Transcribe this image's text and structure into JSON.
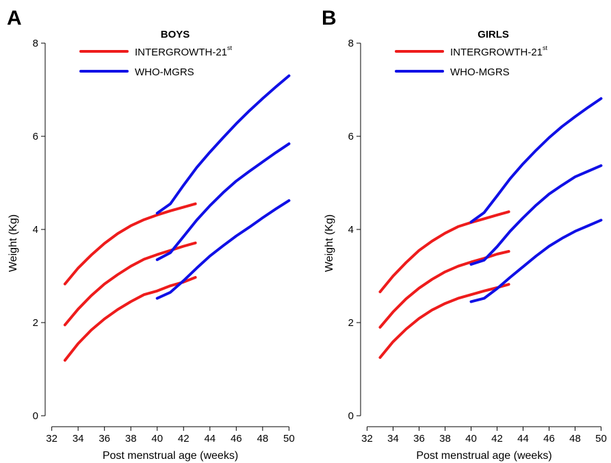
{
  "chart_data": [
    {
      "panel_letter": "A",
      "title": "BOYS",
      "type": "line",
      "xlabel": "Post menstrual age (weeks)",
      "ylabel": "Weight (Kg)",
      "xlim": [
        31.5,
        50.5
      ],
      "ylim": [
        0,
        8
      ],
      "x_ticks": [
        "32",
        "34",
        "36",
        "38",
        "40",
        "42",
        "44",
        "46",
        "48",
        "50"
      ],
      "y_ticks": [
        "0",
        "2",
        "4",
        "6",
        "8"
      ],
      "grid": false,
      "legend_position": "top",
      "legend": [
        {
          "label": "INTERGROWTH-21",
          "sup": "st",
          "color": "#ee1c1c"
        },
        {
          "label": "WHO-MGRS",
          "color": "#1010e6"
        }
      ],
      "series": [
        {
          "group": "INTERGROWTH-21st",
          "color": "#ee1c1c",
          "x": [
            33,
            34,
            35,
            36,
            37,
            38,
            39,
            40,
            41,
            42,
            42.9
          ],
          "y": [
            2.83,
            3.17,
            3.45,
            3.7,
            3.91,
            4.08,
            4.21,
            4.31,
            4.4,
            4.48,
            4.55
          ]
        },
        {
          "group": "INTERGROWTH-21st",
          "color": "#ee1c1c",
          "x": [
            33,
            34,
            35,
            36,
            37,
            38,
            39,
            40,
            41,
            42,
            42.9
          ],
          "y": [
            1.95,
            2.29,
            2.58,
            2.83,
            3.03,
            3.21,
            3.36,
            3.46,
            3.55,
            3.64,
            3.71
          ]
        },
        {
          "group": "INTERGROWTH-21st",
          "color": "#ee1c1c",
          "x": [
            33,
            34,
            35,
            36,
            37,
            38,
            39,
            40,
            41,
            42,
            42.9
          ],
          "y": [
            1.19,
            1.55,
            1.84,
            2.08,
            2.28,
            2.45,
            2.6,
            2.68,
            2.79,
            2.87,
            2.97
          ]
        },
        {
          "group": "WHO-MGRS",
          "color": "#1010e6",
          "x": [
            40,
            41,
            42,
            43,
            44,
            45,
            46,
            47,
            48,
            49,
            50
          ],
          "y": [
            4.35,
            4.55,
            4.95,
            5.33,
            5.66,
            5.97,
            6.27,
            6.55,
            6.81,
            7.06,
            7.3
          ]
        },
        {
          "group": "WHO-MGRS",
          "color": "#1010e6",
          "x": [
            40,
            41,
            42,
            43,
            44,
            45,
            46,
            47,
            48,
            49,
            50
          ],
          "y": [
            3.35,
            3.5,
            3.85,
            4.2,
            4.51,
            4.79,
            5.04,
            5.25,
            5.45,
            5.65,
            5.84
          ]
        },
        {
          "group": "WHO-MGRS",
          "color": "#1010e6",
          "x": [
            40,
            41,
            42,
            43,
            44,
            45,
            46,
            47,
            48,
            49,
            50
          ],
          "y": [
            2.52,
            2.65,
            2.9,
            3.17,
            3.43,
            3.65,
            3.86,
            4.05,
            4.25,
            4.44,
            4.62
          ]
        }
      ]
    },
    {
      "panel_letter": "B",
      "title": "GIRLS",
      "type": "line",
      "xlabel": "Post menstrual age (weeks)",
      "ylabel": "Weight (Kg)",
      "xlim": [
        31.5,
        50.5
      ],
      "ylim": [
        0,
        8
      ],
      "x_ticks": [
        "32",
        "34",
        "36",
        "38",
        "40",
        "42",
        "44",
        "46",
        "48",
        "50"
      ],
      "y_ticks": [
        "0",
        "2",
        "4",
        "6",
        "8"
      ],
      "grid": false,
      "legend_position": "top",
      "legend": [
        {
          "label": "INTERGROWTH-21",
          "sup": "st",
          "color": "#ee1c1c"
        },
        {
          "label": "WHO-MGRS",
          "color": "#1010e6"
        }
      ],
      "series": [
        {
          "group": "INTERGROWTH-21st",
          "color": "#ee1c1c",
          "x": [
            33,
            34,
            35,
            36,
            37,
            38,
            39,
            40,
            41,
            42,
            42.9
          ],
          "y": [
            2.66,
            3.0,
            3.29,
            3.55,
            3.75,
            3.92,
            4.06,
            4.15,
            4.23,
            4.31,
            4.38
          ]
        },
        {
          "group": "INTERGROWTH-21st",
          "color": "#ee1c1c",
          "x": [
            33,
            34,
            35,
            36,
            37,
            38,
            39,
            40,
            41,
            42,
            42.9
          ],
          "y": [
            1.9,
            2.23,
            2.51,
            2.74,
            2.93,
            3.09,
            3.21,
            3.3,
            3.38,
            3.47,
            3.53
          ]
        },
        {
          "group": "INTERGROWTH-21st",
          "color": "#ee1c1c",
          "x": [
            33,
            34,
            35,
            36,
            37,
            38,
            39,
            40,
            41,
            42,
            42.9
          ],
          "y": [
            1.25,
            1.59,
            1.86,
            2.09,
            2.27,
            2.41,
            2.52,
            2.6,
            2.68,
            2.75,
            2.82
          ]
        },
        {
          "group": "WHO-MGRS",
          "color": "#1010e6",
          "x": [
            40,
            41,
            42,
            43,
            44,
            45,
            46,
            47,
            48,
            49,
            50
          ],
          "y": [
            4.16,
            4.36,
            4.72,
            5.09,
            5.41,
            5.7,
            5.97,
            6.21,
            6.42,
            6.62,
            6.81
          ]
        },
        {
          "group": "WHO-MGRS",
          "color": "#1010e6",
          "x": [
            40,
            41,
            42,
            43,
            44,
            45,
            46,
            47,
            48,
            49,
            50
          ],
          "y": [
            3.25,
            3.34,
            3.63,
            3.96,
            4.25,
            4.52,
            4.76,
            4.95,
            5.13,
            5.25,
            5.37
          ]
        },
        {
          "group": "WHO-MGRS",
          "color": "#1010e6",
          "x": [
            40,
            41,
            42,
            43,
            44,
            45,
            46,
            47,
            48,
            49,
            50
          ],
          "y": [
            2.45,
            2.52,
            2.73,
            2.97,
            3.2,
            3.43,
            3.64,
            3.81,
            3.96,
            4.08,
            4.2
          ]
        }
      ]
    }
  ]
}
